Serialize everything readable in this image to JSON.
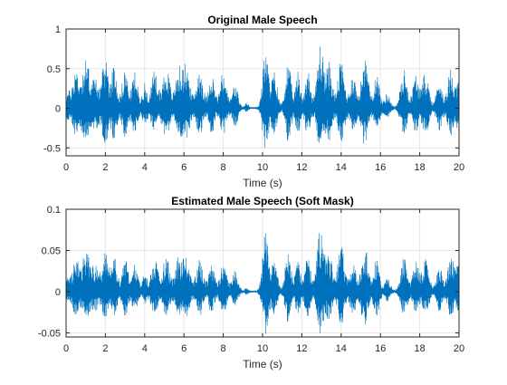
{
  "figure": {
    "background": "#ffffff",
    "line_color": "#0072BD",
    "grid_color": "#e6e6e6",
    "axis_color": "#262626"
  },
  "chart_data": [
    {
      "type": "line",
      "title": "Original Male Speech",
      "xlabel": "Time (s)",
      "ylabel": "",
      "xlim": [
        0,
        20
      ],
      "ylim": [
        -0.6,
        1
      ],
      "xticks": [
        0,
        2,
        4,
        6,
        8,
        10,
        12,
        14,
        16,
        18,
        20
      ],
      "xtick_labels": [
        "0",
        "2",
        "4",
        "6",
        "8",
        "10",
        "12",
        "14",
        "16",
        "18",
        "20"
      ],
      "yticks": [
        -0.5,
        0,
        0.5,
        1
      ],
      "ytick_labels": [
        "-0.5",
        "0",
        "0.5",
        "1"
      ],
      "grid": true,
      "series": [
        {
          "color": "#0072BD",
          "note_style": "speech waveform envelope",
          "bursts": [
            {
              "t": 0.1,
              "w": 0.35,
              "a": 0.2
            },
            {
              "t": 0.5,
              "w": 0.3,
              "a": 0.48
            },
            {
              "t": 1.0,
              "w": 0.4,
              "a": 0.6
            },
            {
              "t": 1.5,
              "w": 0.4,
              "a": 0.35
            },
            {
              "t": 2.0,
              "w": 0.3,
              "a": 0.65
            },
            {
              "t": 2.45,
              "w": 0.3,
              "a": 0.55
            },
            {
              "t": 3.0,
              "w": 0.3,
              "a": 0.5
            },
            {
              "t": 3.5,
              "w": 0.3,
              "a": 0.45
            },
            {
              "t": 4.0,
              "w": 0.25,
              "a": 0.3
            },
            {
              "t": 4.5,
              "w": 0.35,
              "a": 0.45
            },
            {
              "t": 5.1,
              "w": 0.4,
              "a": 0.5
            },
            {
              "t": 5.7,
              "w": 0.3,
              "a": 0.45
            },
            {
              "t": 6.1,
              "w": 0.4,
              "a": 0.55
            },
            {
              "t": 6.8,
              "w": 0.35,
              "a": 0.5
            },
            {
              "t": 7.4,
              "w": 0.3,
              "a": 0.45
            },
            {
              "t": 8.0,
              "w": 0.35,
              "a": 0.45
            },
            {
              "t": 8.6,
              "w": 0.3,
              "a": 0.3
            },
            {
              "t": 9.2,
              "w": 0.15,
              "a": 0.06
            },
            {
              "t": 10.15,
              "w": 0.3,
              "a": 0.72
            },
            {
              "t": 10.6,
              "w": 0.3,
              "a": 0.45
            },
            {
              "t": 11.3,
              "w": 0.3,
              "a": 0.58
            },
            {
              "t": 11.8,
              "w": 0.25,
              "a": 0.45
            },
            {
              "t": 12.3,
              "w": 0.3,
              "a": 0.48
            },
            {
              "t": 12.95,
              "w": 0.35,
              "a": 0.82
            },
            {
              "t": 13.4,
              "w": 0.3,
              "a": 0.55
            },
            {
              "t": 14.0,
              "w": 0.35,
              "a": 0.6
            },
            {
              "t": 14.6,
              "w": 0.3,
              "a": 0.45
            },
            {
              "t": 15.2,
              "w": 0.35,
              "a": 0.65
            },
            {
              "t": 15.8,
              "w": 0.3,
              "a": 0.45
            },
            {
              "t": 16.35,
              "w": 0.3,
              "a": 0.18
            },
            {
              "t": 17.2,
              "w": 0.35,
              "a": 0.48
            },
            {
              "t": 17.8,
              "w": 0.3,
              "a": 0.42
            },
            {
              "t": 18.3,
              "w": 0.35,
              "a": 0.45
            },
            {
              "t": 19.0,
              "w": 0.3,
              "a": 0.38
            },
            {
              "t": 19.6,
              "w": 0.35,
              "a": 0.5
            },
            {
              "t": 19.95,
              "w": 0.15,
              "a": 0.4
            }
          ]
        }
      ]
    },
    {
      "type": "line",
      "title": "Estimated Male Speech (Soft Mask)",
      "xlabel": "Time (s)",
      "ylabel": "",
      "xlim": [
        0,
        20
      ],
      "ylim": [
        -0.055,
        0.1
      ],
      "xticks": [
        0,
        2,
        4,
        6,
        8,
        10,
        12,
        14,
        16,
        18,
        20
      ],
      "xtick_labels": [
        "0",
        "2",
        "4",
        "6",
        "8",
        "10",
        "12",
        "14",
        "16",
        "18",
        "20"
      ],
      "yticks": [
        -0.05,
        0,
        0.05,
        0.1
      ],
      "ytick_labels": [
        "-0.05",
        "0",
        "0.05",
        "0.1"
      ],
      "grid": true,
      "series": [
        {
          "color": "#0072BD",
          "note_style": "speech waveform envelope",
          "bursts": [
            {
              "t": 0.1,
              "w": 0.35,
              "a": 0.015
            },
            {
              "t": 0.5,
              "w": 0.3,
              "a": 0.04
            },
            {
              "t": 1.0,
              "w": 0.4,
              "a": 0.048
            },
            {
              "t": 1.5,
              "w": 0.4,
              "a": 0.03
            },
            {
              "t": 2.0,
              "w": 0.3,
              "a": 0.05
            },
            {
              "t": 2.45,
              "w": 0.3,
              "a": 0.042
            },
            {
              "t": 3.0,
              "w": 0.3,
              "a": 0.04
            },
            {
              "t": 3.5,
              "w": 0.3,
              "a": 0.035
            },
            {
              "t": 4.0,
              "w": 0.25,
              "a": 0.02
            },
            {
              "t": 4.5,
              "w": 0.35,
              "a": 0.038
            },
            {
              "t": 5.1,
              "w": 0.4,
              "a": 0.04
            },
            {
              "t": 5.7,
              "w": 0.3,
              "a": 0.036
            },
            {
              "t": 6.1,
              "w": 0.4,
              "a": 0.042
            },
            {
              "t": 6.8,
              "w": 0.35,
              "a": 0.04
            },
            {
              "t": 7.4,
              "w": 0.3,
              "a": 0.035
            },
            {
              "t": 8.0,
              "w": 0.35,
              "a": 0.036
            },
            {
              "t": 8.6,
              "w": 0.3,
              "a": 0.025
            },
            {
              "t": 9.2,
              "w": 0.15,
              "a": 0.005
            },
            {
              "t": 10.15,
              "w": 0.3,
              "a": 0.07
            },
            {
              "t": 10.6,
              "w": 0.3,
              "a": 0.04
            },
            {
              "t": 11.3,
              "w": 0.3,
              "a": 0.05
            },
            {
              "t": 11.8,
              "w": 0.25,
              "a": 0.04
            },
            {
              "t": 12.3,
              "w": 0.3,
              "a": 0.042
            },
            {
              "t": 12.95,
              "w": 0.35,
              "a": 0.078
            },
            {
              "t": 13.4,
              "w": 0.3,
              "a": 0.045
            },
            {
              "t": 14.0,
              "w": 0.35,
              "a": 0.055
            },
            {
              "t": 14.6,
              "w": 0.3,
              "a": 0.04
            },
            {
              "t": 15.2,
              "w": 0.35,
              "a": 0.058
            },
            {
              "t": 15.8,
              "w": 0.3,
              "a": 0.04
            },
            {
              "t": 16.35,
              "w": 0.3,
              "a": 0.015
            },
            {
              "t": 17.2,
              "w": 0.35,
              "a": 0.04
            },
            {
              "t": 17.8,
              "w": 0.3,
              "a": 0.036
            },
            {
              "t": 18.3,
              "w": 0.35,
              "a": 0.038
            },
            {
              "t": 19.0,
              "w": 0.3,
              "a": 0.032
            },
            {
              "t": 19.6,
              "w": 0.35,
              "a": 0.045
            },
            {
              "t": 19.95,
              "w": 0.15,
              "a": 0.035
            }
          ]
        }
      ]
    }
  ]
}
